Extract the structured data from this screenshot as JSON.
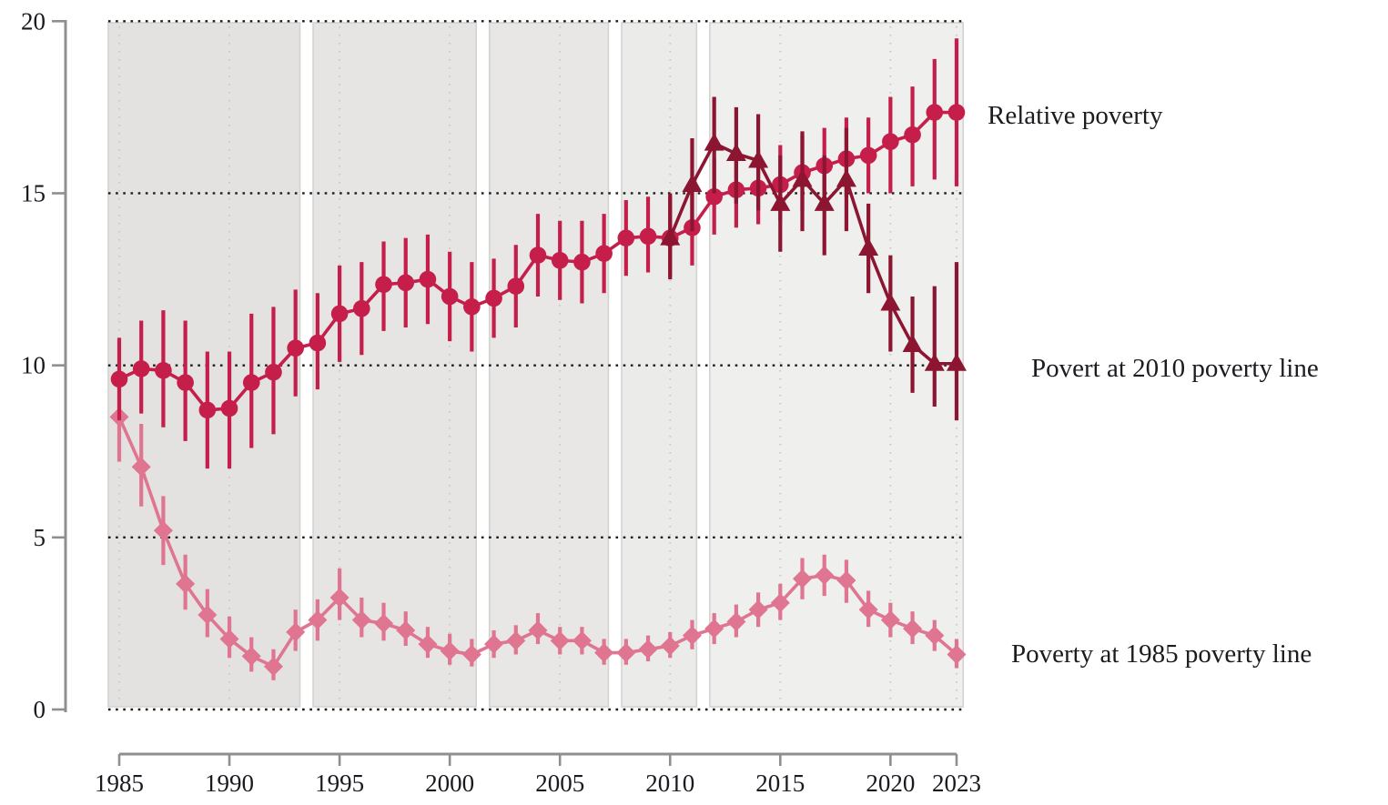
{
  "chart_data": {
    "type": "line",
    "title": "",
    "xlabel": "",
    "ylabel": "",
    "xlim": [
      1984.5,
      2023.3
    ],
    "ylim": [
      0,
      20
    ],
    "xticks": [
      1985,
      1990,
      1995,
      2000,
      2005,
      2010,
      2015,
      2020,
      2023
    ],
    "yticks": [
      0,
      5,
      10,
      15,
      20
    ],
    "grid": "dotted black horizontal lines at y ticks; faint dotted vertical lines at x ticks inside shaded bands",
    "legend_position": "labels in right margin next to each series",
    "bands": [
      {
        "x0": 1984.5,
        "x1": 1993.2,
        "color": "#e3e2e0"
      },
      {
        "x0": 1993.8,
        "x1": 2001.2,
        "color": "#e6e5e3"
      },
      {
        "x0": 2001.8,
        "x1": 2007.2,
        "color": "#e8e7e5"
      },
      {
        "x0": 2007.8,
        "x1": 2011.2,
        "color": "#ebebe9"
      },
      {
        "x0": 2011.8,
        "x1": 2023.3,
        "color": "#efefed"
      }
    ],
    "series": [
      {
        "name": "Relative poverty",
        "marker": "circle",
        "color": "#C51E4B",
        "points": [
          {
            "year": 1985,
            "value": 9.6,
            "lo": 8.4,
            "hi": 10.8
          },
          {
            "year": 1986,
            "value": 9.9,
            "lo": 8.6,
            "hi": 11.3
          },
          {
            "year": 1987,
            "value": 9.85,
            "lo": 8.2,
            "hi": 11.6
          },
          {
            "year": 1988,
            "value": 9.5,
            "lo": 7.8,
            "hi": 11.3
          },
          {
            "year": 1989,
            "value": 8.7,
            "lo": 7.0,
            "hi": 10.4
          },
          {
            "year": 1990,
            "value": 8.75,
            "lo": 7.0,
            "hi": 10.4
          },
          {
            "year": 1991,
            "value": 9.5,
            "lo": 7.6,
            "hi": 11.5
          },
          {
            "year": 1992,
            "value": 9.8,
            "lo": 8.0,
            "hi": 11.7
          },
          {
            "year": 1993,
            "value": 10.5,
            "lo": 9.1,
            "hi": 12.2
          },
          {
            "year": 1994,
            "value": 10.65,
            "lo": 9.3,
            "hi": 12.1
          },
          {
            "year": 1995,
            "value": 11.5,
            "lo": 10.1,
            "hi": 12.9
          },
          {
            "year": 1996,
            "value": 11.65,
            "lo": 10.3,
            "hi": 13.0
          },
          {
            "year": 1997,
            "value": 12.35,
            "lo": 11.0,
            "hi": 13.6
          },
          {
            "year": 1998,
            "value": 12.4,
            "lo": 11.1,
            "hi": 13.7
          },
          {
            "year": 1999,
            "value": 12.5,
            "lo": 11.2,
            "hi": 13.8
          },
          {
            "year": 2000,
            "value": 12.0,
            "lo": 10.7,
            "hi": 13.3
          },
          {
            "year": 2001,
            "value": 11.7,
            "lo": 10.4,
            "hi": 13.0
          },
          {
            "year": 2002,
            "value": 11.95,
            "lo": 10.8,
            "hi": 13.1
          },
          {
            "year": 2003,
            "value": 12.3,
            "lo": 11.1,
            "hi": 13.5
          },
          {
            "year": 2004,
            "value": 13.2,
            "lo": 12.0,
            "hi": 14.4
          },
          {
            "year": 2005,
            "value": 13.05,
            "lo": 11.9,
            "hi": 14.2
          },
          {
            "year": 2006,
            "value": 13.0,
            "lo": 11.8,
            "hi": 14.2
          },
          {
            "year": 2007,
            "value": 13.25,
            "lo": 12.1,
            "hi": 14.4
          },
          {
            "year": 2008,
            "value": 13.7,
            "lo": 12.6,
            "hi": 14.8
          },
          {
            "year": 2009,
            "value": 13.75,
            "lo": 12.7,
            "hi": 14.9
          },
          {
            "year": 2010,
            "value": 13.7,
            "lo": 12.6,
            "hi": 14.9
          },
          {
            "year": 2011,
            "value": 14.0,
            "lo": 12.9,
            "hi": 15.1
          },
          {
            "year": 2012,
            "value": 14.9,
            "lo": 13.8,
            "hi": 16.0
          },
          {
            "year": 2013,
            "value": 15.1,
            "lo": 14.0,
            "hi": 16.2
          },
          {
            "year": 2014,
            "value": 15.15,
            "lo": 14.1,
            "hi": 16.3
          },
          {
            "year": 2015,
            "value": 15.25,
            "lo": 14.2,
            "hi": 16.4
          },
          {
            "year": 2016,
            "value": 15.6,
            "lo": 14.5,
            "hi": 16.7
          },
          {
            "year": 2017,
            "value": 15.8,
            "lo": 14.7,
            "hi": 16.9
          },
          {
            "year": 2018,
            "value": 16.0,
            "lo": 14.9,
            "hi": 17.2
          },
          {
            "year": 2019,
            "value": 16.1,
            "lo": 15.0,
            "hi": 17.2
          },
          {
            "year": 2020,
            "value": 16.5,
            "lo": 15.0,
            "hi": 17.8
          },
          {
            "year": 2021,
            "value": 16.7,
            "lo": 15.2,
            "hi": 18.1
          },
          {
            "year": 2022,
            "value": 17.35,
            "lo": 15.4,
            "hi": 18.9
          },
          {
            "year": 2023,
            "value": 17.35,
            "lo": 15.2,
            "hi": 19.5
          }
        ]
      },
      {
        "name": "Povert at 2010 poverty line",
        "marker": "triangle",
        "color": "#8C1532",
        "points": [
          {
            "year": 2010,
            "value": 13.7,
            "lo": 12.5,
            "hi": 15.0
          },
          {
            "year": 2011,
            "value": 15.25,
            "lo": 13.9,
            "hi": 16.6
          },
          {
            "year": 2012,
            "value": 16.45,
            "lo": 15.0,
            "hi": 17.8
          },
          {
            "year": 2013,
            "value": 16.15,
            "lo": 14.7,
            "hi": 17.5
          },
          {
            "year": 2014,
            "value": 15.95,
            "lo": 14.5,
            "hi": 17.3
          },
          {
            "year": 2015,
            "value": 14.7,
            "lo": 13.3,
            "hi": 16.1
          },
          {
            "year": 2016,
            "value": 15.4,
            "lo": 13.9,
            "hi": 16.8
          },
          {
            "year": 2017,
            "value": 14.7,
            "lo": 13.2,
            "hi": 16.1
          },
          {
            "year": 2018,
            "value": 15.4,
            "lo": 13.9,
            "hi": 16.9
          },
          {
            "year": 2019,
            "value": 13.4,
            "lo": 12.1,
            "hi": 14.7
          },
          {
            "year": 2020,
            "value": 11.8,
            "lo": 10.4,
            "hi": 13.2
          },
          {
            "year": 2021,
            "value": 10.6,
            "lo": 9.2,
            "hi": 12.0
          },
          {
            "year": 2022,
            "value": 10.05,
            "lo": 8.8,
            "hi": 12.3
          },
          {
            "year": 2023,
            "value": 10.05,
            "lo": 8.4,
            "hi": 13.0
          }
        ]
      },
      {
        "name": "Poverty at 1985 poverty line",
        "marker": "diamond",
        "color": "#DF7590",
        "points": [
          {
            "year": 1985,
            "value": 8.5,
            "lo": 7.2,
            "hi": 9.8
          },
          {
            "year": 1986,
            "value": 7.05,
            "lo": 5.9,
            "hi": 8.3
          },
          {
            "year": 1987,
            "value": 5.2,
            "lo": 4.2,
            "hi": 6.2
          },
          {
            "year": 1988,
            "value": 3.65,
            "lo": 2.9,
            "hi": 4.5
          },
          {
            "year": 1989,
            "value": 2.75,
            "lo": 2.1,
            "hi": 3.5
          },
          {
            "year": 1990,
            "value": 2.05,
            "lo": 1.5,
            "hi": 2.7
          },
          {
            "year": 1991,
            "value": 1.55,
            "lo": 1.1,
            "hi": 2.1
          },
          {
            "year": 1992,
            "value": 1.25,
            "lo": 0.85,
            "hi": 1.75
          },
          {
            "year": 1993,
            "value": 2.25,
            "lo": 1.7,
            "hi": 2.9
          },
          {
            "year": 1994,
            "value": 2.6,
            "lo": 2.0,
            "hi": 3.2
          },
          {
            "year": 1995,
            "value": 3.25,
            "lo": 2.6,
            "hi": 4.1
          },
          {
            "year": 1996,
            "value": 2.6,
            "lo": 2.1,
            "hi": 3.25
          },
          {
            "year": 1997,
            "value": 2.5,
            "lo": 2.0,
            "hi": 3.1
          },
          {
            "year": 1998,
            "value": 2.3,
            "lo": 1.85,
            "hi": 2.85
          },
          {
            "year": 1999,
            "value": 1.9,
            "lo": 1.5,
            "hi": 2.4
          },
          {
            "year": 2000,
            "value": 1.7,
            "lo": 1.3,
            "hi": 2.2
          },
          {
            "year": 2001,
            "value": 1.6,
            "lo": 1.25,
            "hi": 2.05
          },
          {
            "year": 2002,
            "value": 1.9,
            "lo": 1.5,
            "hi": 2.3
          },
          {
            "year": 2003,
            "value": 2.0,
            "lo": 1.6,
            "hi": 2.45
          },
          {
            "year": 2004,
            "value": 2.3,
            "lo": 1.9,
            "hi": 2.8
          },
          {
            "year": 2005,
            "value": 2.0,
            "lo": 1.6,
            "hi": 2.4
          },
          {
            "year": 2006,
            "value": 2.0,
            "lo": 1.6,
            "hi": 2.4
          },
          {
            "year": 2007,
            "value": 1.65,
            "lo": 1.3,
            "hi": 2.05
          },
          {
            "year": 2008,
            "value": 1.65,
            "lo": 1.3,
            "hi": 2.05
          },
          {
            "year": 2009,
            "value": 1.75,
            "lo": 1.4,
            "hi": 2.15
          },
          {
            "year": 2010,
            "value": 1.85,
            "lo": 1.5,
            "hi": 2.25
          },
          {
            "year": 2011,
            "value": 2.15,
            "lo": 1.75,
            "hi": 2.6
          },
          {
            "year": 2012,
            "value": 2.35,
            "lo": 1.9,
            "hi": 2.8
          },
          {
            "year": 2013,
            "value": 2.55,
            "lo": 2.1,
            "hi": 3.05
          },
          {
            "year": 2014,
            "value": 2.9,
            "lo": 2.4,
            "hi": 3.4
          },
          {
            "year": 2015,
            "value": 3.1,
            "lo": 2.6,
            "hi": 3.65
          },
          {
            "year": 2016,
            "value": 3.8,
            "lo": 3.2,
            "hi": 4.4
          },
          {
            "year": 2017,
            "value": 3.9,
            "lo": 3.3,
            "hi": 4.5
          },
          {
            "year": 2018,
            "value": 3.75,
            "lo": 3.1,
            "hi": 4.35
          },
          {
            "year": 2019,
            "value": 2.9,
            "lo": 2.4,
            "hi": 3.45
          },
          {
            "year": 2020,
            "value": 2.6,
            "lo": 2.1,
            "hi": 3.1
          },
          {
            "year": 2021,
            "value": 2.35,
            "lo": 1.9,
            "hi": 2.85
          },
          {
            "year": 2022,
            "value": 2.15,
            "lo": 1.7,
            "hi": 2.6
          },
          {
            "year": 2023,
            "value": 1.6,
            "lo": 1.2,
            "hi": 2.05
          }
        ]
      }
    ],
    "colors": {
      "axis": "#8f8f8f",
      "grid_dots": "#1b1b1b",
      "band_border": "#d4d3d1",
      "band_grid_dots": "#c9c9c7",
      "tick_text": "#191920"
    }
  }
}
